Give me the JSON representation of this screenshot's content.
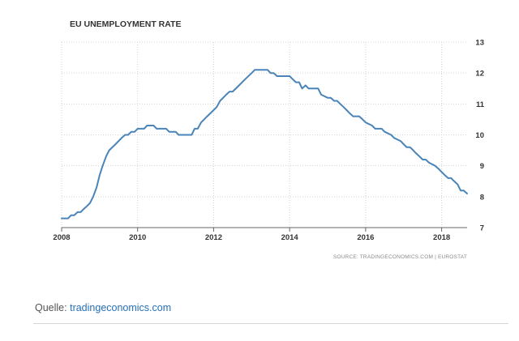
{
  "chart_data": {
    "type": "line",
    "title": "EU UNEMPLOYMENT RATE",
    "xlabel": "",
    "ylabel": "",
    "xlim": [
      2008.0,
      2018.67
    ],
    "ylim": [
      7,
      13
    ],
    "x_ticks": [
      "2008",
      "2010",
      "2012",
      "2014",
      "2016",
      "2018"
    ],
    "y_ticks": [
      "7",
      "8",
      "9",
      "10",
      "11",
      "12",
      "13"
    ],
    "grid": true,
    "y_axis_side": "right",
    "series": [
      {
        "color": "#4a84b8",
        "points": [
          [
            2008.0,
            7.3
          ],
          [
            2008.17,
            7.3
          ],
          [
            2008.25,
            7.4
          ],
          [
            2008.33,
            7.4
          ],
          [
            2008.42,
            7.5
          ],
          [
            2008.5,
            7.5
          ],
          [
            2008.58,
            7.6
          ],
          [
            2008.67,
            7.7
          ],
          [
            2008.75,
            7.8
          ],
          [
            2008.83,
            8.0
          ],
          [
            2008.92,
            8.3
          ],
          [
            2009.0,
            8.7
          ],
          [
            2009.08,
            9.0
          ],
          [
            2009.17,
            9.3
          ],
          [
            2009.25,
            9.5
          ],
          [
            2009.42,
            9.7
          ],
          [
            2009.58,
            9.9
          ],
          [
            2009.67,
            10.0
          ],
          [
            2009.75,
            10.0
          ],
          [
            2009.83,
            10.1
          ],
          [
            2009.92,
            10.1
          ],
          [
            2010.0,
            10.2
          ],
          [
            2010.17,
            10.2
          ],
          [
            2010.25,
            10.3
          ],
          [
            2010.42,
            10.3
          ],
          [
            2010.5,
            10.2
          ],
          [
            2010.75,
            10.2
          ],
          [
            2010.83,
            10.1
          ],
          [
            2011.0,
            10.1
          ],
          [
            2011.08,
            10.0
          ],
          [
            2011.42,
            10.0
          ],
          [
            2011.5,
            10.2
          ],
          [
            2011.58,
            10.2
          ],
          [
            2011.67,
            10.4
          ],
          [
            2011.83,
            10.6
          ],
          [
            2012.0,
            10.8
          ],
          [
            2012.08,
            10.9
          ],
          [
            2012.17,
            11.1
          ],
          [
            2012.33,
            11.3
          ],
          [
            2012.42,
            11.4
          ],
          [
            2012.5,
            11.4
          ],
          [
            2012.67,
            11.6
          ],
          [
            2012.83,
            11.8
          ],
          [
            2013.0,
            12.0
          ],
          [
            2013.08,
            12.1
          ],
          [
            2013.42,
            12.1
          ],
          [
            2013.5,
            12.0
          ],
          [
            2013.58,
            12.0
          ],
          [
            2013.67,
            11.9
          ],
          [
            2013.83,
            11.9
          ],
          [
            2014.0,
            11.9
          ],
          [
            2014.08,
            11.8
          ],
          [
            2014.17,
            11.7
          ],
          [
            2014.25,
            11.7
          ],
          [
            2014.33,
            11.5
          ],
          [
            2014.42,
            11.6
          ],
          [
            2014.5,
            11.5
          ],
          [
            2014.75,
            11.5
          ],
          [
            2014.83,
            11.3
          ],
          [
            2015.0,
            11.2
          ],
          [
            2015.08,
            11.2
          ],
          [
            2015.17,
            11.1
          ],
          [
            2015.25,
            11.1
          ],
          [
            2015.33,
            11.0
          ],
          [
            2015.42,
            10.9
          ],
          [
            2015.5,
            10.8
          ],
          [
            2015.58,
            10.7
          ],
          [
            2015.67,
            10.6
          ],
          [
            2015.83,
            10.6
          ],
          [
            2015.92,
            10.5
          ],
          [
            2016.0,
            10.4
          ],
          [
            2016.17,
            10.3
          ],
          [
            2016.25,
            10.2
          ],
          [
            2016.42,
            10.2
          ],
          [
            2016.5,
            10.1
          ],
          [
            2016.67,
            10.0
          ],
          [
            2016.75,
            9.9
          ],
          [
            2016.92,
            9.8
          ],
          [
            2017.0,
            9.7
          ],
          [
            2017.08,
            9.6
          ],
          [
            2017.17,
            9.6
          ],
          [
            2017.25,
            9.5
          ],
          [
            2017.33,
            9.4
          ],
          [
            2017.42,
            9.3
          ],
          [
            2017.5,
            9.2
          ],
          [
            2017.58,
            9.2
          ],
          [
            2017.67,
            9.1
          ],
          [
            2017.83,
            9.0
          ],
          [
            2017.92,
            8.9
          ],
          [
            2018.0,
            8.8
          ],
          [
            2018.08,
            8.7
          ],
          [
            2018.17,
            8.6
          ],
          [
            2018.25,
            8.6
          ],
          [
            2018.33,
            8.5
          ],
          [
            2018.42,
            8.4
          ],
          [
            2018.5,
            8.2
          ],
          [
            2018.58,
            8.2
          ],
          [
            2018.67,
            8.1
          ]
        ]
      }
    ],
    "source": "SOURCE: TRADINGECONOMICS.COM | EUROSTAT"
  },
  "caption": {
    "prefix": "Quelle: ",
    "link_text": "tradingeconomics.com"
  }
}
